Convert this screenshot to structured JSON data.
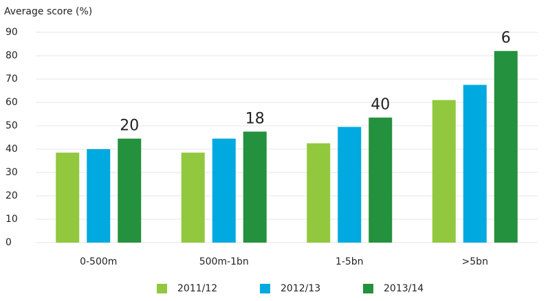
{
  "chart_data": {
    "type": "bar",
    "ylabel": "Average score (%)",
    "categories": [
      "0-500m",
      "500m-1bn",
      "1-5bn",
      ">5bn"
    ],
    "series": [
      {
        "name": "2011/12",
        "color": "#92c83e",
        "values": [
          38.5,
          38.5,
          42.5,
          61
        ]
      },
      {
        "name": "2012/13",
        "color": "#00a9e0",
        "values": [
          40,
          44.5,
          49.5,
          67.5
        ]
      },
      {
        "name": "2013/14",
        "color": "#23913d",
        "values": [
          44.5,
          47.5,
          53.5,
          82
        ]
      }
    ],
    "annotations": [
      "20",
      "18",
      "40",
      "6"
    ],
    "ylim": [
      0,
      90
    ],
    "yticks": [
      0,
      10,
      20,
      30,
      40,
      50,
      60,
      70,
      80,
      90
    ],
    "grid": true,
    "legend": "bottom"
  }
}
